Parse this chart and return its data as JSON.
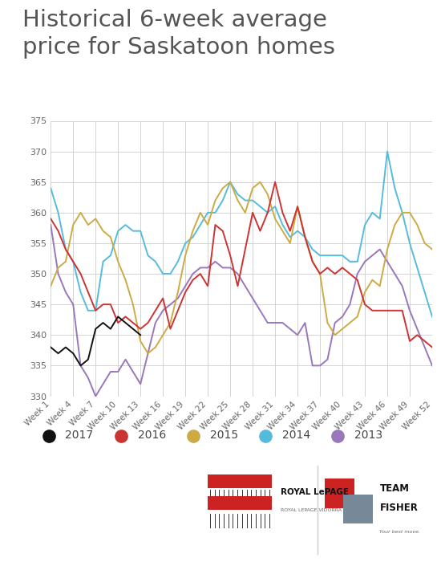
{
  "title": "Historical 6-week average\nprice for Saskatoon homes",
  "title_color": "#555555",
  "bg_color": "#ffffff",
  "grid_color": "#cccccc",
  "ylim": [
    330,
    375
  ],
  "yticks": [
    330,
    335,
    340,
    345,
    350,
    355,
    360,
    365,
    370,
    375
  ],
  "series": {
    "2017": {
      "color": "#111111",
      "weeks": [
        1,
        2,
        3,
        4,
        5,
        6,
        7,
        8,
        9,
        10,
        11,
        12,
        13
      ],
      "values": [
        338,
        337,
        338,
        337,
        335,
        336,
        341,
        342,
        341,
        343,
        342,
        341,
        340
      ]
    },
    "2016": {
      "color": "#cc3333",
      "weeks": [
        1,
        2,
        3,
        4,
        5,
        6,
        7,
        8,
        9,
        10,
        11,
        12,
        13,
        14,
        15,
        16,
        17,
        18,
        19,
        20,
        21,
        22,
        23,
        24,
        25,
        26,
        27,
        28,
        29,
        30,
        31,
        32,
        33,
        34,
        35,
        36,
        37,
        38,
        39,
        40,
        41,
        42,
        43,
        44,
        45,
        46,
        47,
        48,
        49,
        50,
        51,
        52
      ],
      "values": [
        359,
        357,
        354,
        352,
        350,
        347,
        344,
        345,
        345,
        342,
        343,
        342,
        341,
        342,
        344,
        346,
        341,
        344,
        347,
        349,
        350,
        348,
        358,
        357,
        353,
        348,
        354,
        360,
        357,
        360,
        365,
        360,
        357,
        361,
        356,
        352,
        350,
        351,
        350,
        351,
        350,
        349,
        345,
        344,
        344,
        344,
        344,
        344,
        339,
        340,
        339,
        338
      ]
    },
    "2015": {
      "color": "#ccaa44",
      "weeks": [
        1,
        2,
        3,
        4,
        5,
        6,
        7,
        8,
        9,
        10,
        11,
        12,
        13,
        14,
        15,
        16,
        17,
        18,
        19,
        20,
        21,
        22,
        23,
        24,
        25,
        26,
        27,
        28,
        29,
        30,
        31,
        32,
        33,
        34,
        35,
        36,
        37,
        38,
        39,
        40,
        41,
        42,
        43,
        44,
        45,
        46,
        47,
        48,
        49,
        50,
        51,
        52
      ],
      "values": [
        348,
        351,
        352,
        358,
        360,
        358,
        359,
        357,
        356,
        352,
        349,
        345,
        339,
        337,
        338,
        340,
        342,
        347,
        353,
        357,
        360,
        358,
        362,
        364,
        365,
        362,
        360,
        364,
        365,
        363,
        359,
        357,
        355,
        361,
        356,
        352,
        350,
        342,
        340,
        341,
        342,
        343,
        347,
        349,
        348,
        354,
        358,
        360,
        360,
        358,
        355,
        354
      ]
    },
    "2014": {
      "color": "#55bbdd",
      "weeks": [
        1,
        2,
        3,
        4,
        5,
        6,
        7,
        8,
        9,
        10,
        11,
        12,
        13,
        14,
        15,
        16,
        17,
        18,
        19,
        20,
        21,
        22,
        23,
        24,
        25,
        26,
        27,
        28,
        29,
        30,
        31,
        32,
        33,
        34,
        35,
        36,
        37,
        38,
        39,
        40,
        41,
        42,
        43,
        44,
        45,
        46,
        47,
        48,
        49,
        50,
        51,
        52
      ],
      "values": [
        364,
        360,
        354,
        352,
        347,
        344,
        344,
        352,
        353,
        357,
        358,
        357,
        357,
        353,
        352,
        350,
        350,
        352,
        355,
        356,
        358,
        360,
        360,
        362,
        365,
        363,
        362,
        362,
        361,
        360,
        361,
        358,
        356,
        357,
        356,
        354,
        353,
        353,
        353,
        353,
        352,
        352,
        358,
        360,
        359,
        370,
        364,
        360,
        355,
        351,
        347,
        343
      ]
    },
    "2013": {
      "color": "#9977bb",
      "weeks": [
        1,
        2,
        3,
        4,
        5,
        6,
        7,
        8,
        9,
        10,
        11,
        12,
        13,
        14,
        15,
        16,
        17,
        18,
        19,
        20,
        21,
        22,
        23,
        24,
        25,
        26,
        27,
        28,
        29,
        30,
        31,
        32,
        33,
        34,
        35,
        36,
        37,
        38,
        39,
        40,
        41,
        42,
        43,
        44,
        45,
        46,
        47,
        48,
        49,
        50,
        51,
        52
      ],
      "values": [
        358,
        350,
        347,
        345,
        335,
        333,
        330,
        332,
        334,
        334,
        336,
        334,
        332,
        337,
        342,
        344,
        345,
        346,
        348,
        350,
        351,
        351,
        352,
        351,
        351,
        350,
        348,
        346,
        344,
        342,
        342,
        342,
        341,
        340,
        342,
        335,
        335,
        336,
        342,
        343,
        345,
        350,
        352,
        353,
        354,
        352,
        350,
        348,
        344,
        341,
        338,
        335
      ]
    }
  },
  "legend_order": [
    "2017",
    "2016",
    "2015",
    "2014",
    "2013"
  ],
  "xtick_weeks": [
    1,
    4,
    7,
    10,
    13,
    16,
    19,
    22,
    25,
    28,
    31,
    34,
    37,
    40,
    43,
    46,
    49,
    52
  ],
  "separator_color": "#dddddd",
  "tick_color": "#666666"
}
